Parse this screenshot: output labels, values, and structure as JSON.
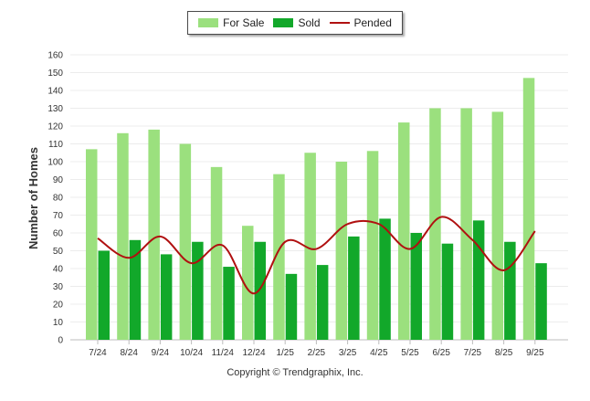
{
  "chart_data": {
    "type": "bar",
    "title": "",
    "xlabel": "",
    "ylabel": "Number of Homes",
    "ylim": [
      0,
      160
    ],
    "yticks": [
      0,
      10,
      20,
      30,
      40,
      50,
      60,
      70,
      80,
      90,
      100,
      110,
      120,
      130,
      140,
      150,
      160
    ],
    "categories": [
      "7/24",
      "8/24",
      "9/24",
      "10/24",
      "11/24",
      "12/24",
      "1/25",
      "2/25",
      "3/25",
      "4/25",
      "5/25",
      "6/25",
      "7/25",
      "8/25",
      "9/25"
    ],
    "series": [
      {
        "name": "For Sale",
        "kind": "bar",
        "color": "#9be07e",
        "values": [
          107,
          116,
          118,
          110,
          97,
          64,
          93,
          105,
          100,
          106,
          122,
          130,
          130,
          128,
          147
        ]
      },
      {
        "name": "Sold",
        "kind": "bar",
        "color": "#12a82a",
        "values": [
          50,
          56,
          48,
          55,
          41,
          55,
          37,
          42,
          58,
          68,
          60,
          54,
          67,
          55,
          43
        ]
      },
      {
        "name": "Pended",
        "kind": "line",
        "color": "#b01010",
        "values": [
          57,
          46,
          58,
          43,
          53,
          26,
          55,
          51,
          65,
          65,
          51,
          69,
          56,
          39,
          61
        ]
      }
    ],
    "legend_position": "top-center",
    "grid": true
  },
  "footer": {
    "copyright": "Copyright © Trendgraphix, Inc."
  }
}
